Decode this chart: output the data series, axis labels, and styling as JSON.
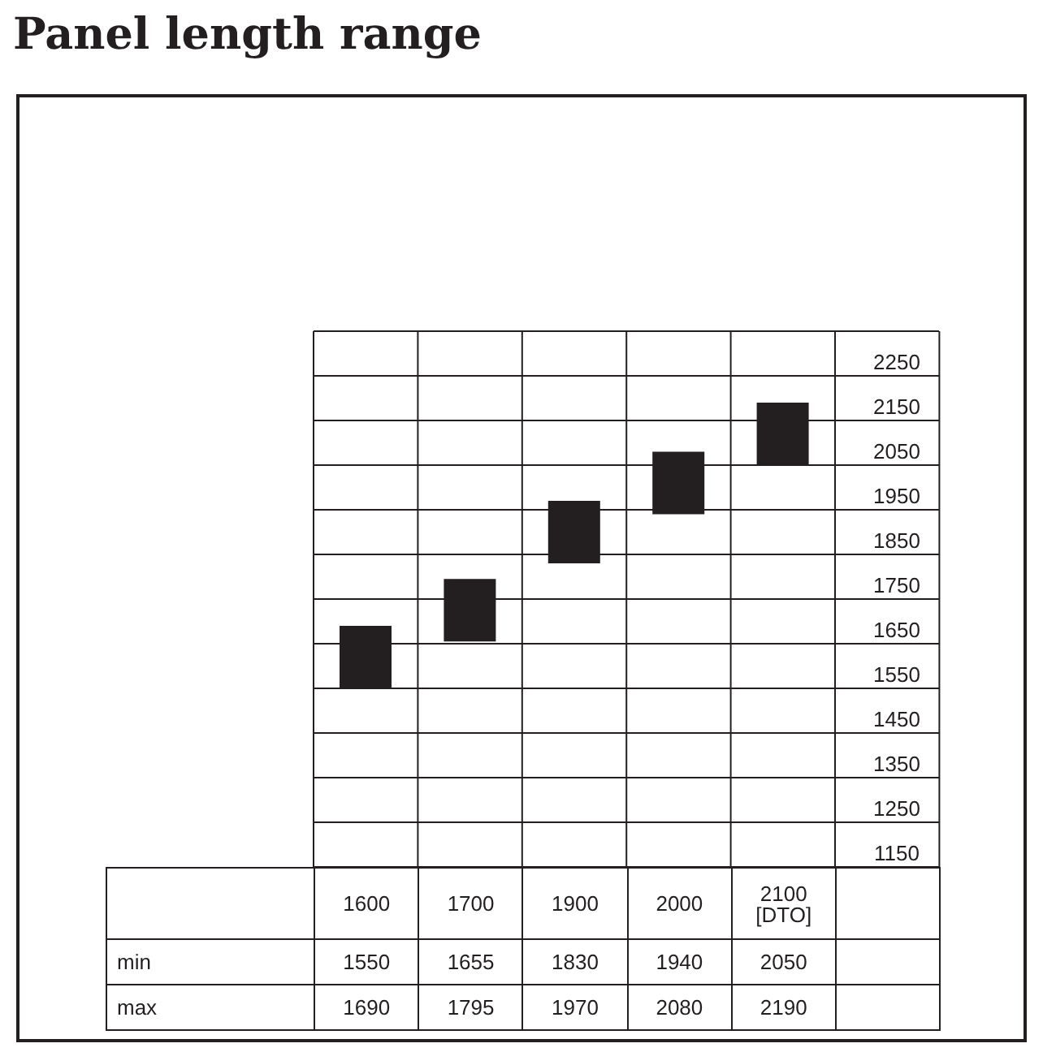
{
  "chart_data": {
    "type": "bar",
    "title": "Panel length range",
    "categories": [
      "1600",
      "1700",
      "1900",
      "2000",
      "2100 [DTO]"
    ],
    "base": [
      1550,
      1655,
      1830,
      1940,
      2050
    ],
    "values": [
      140,
      140,
      140,
      140,
      140
    ],
    "color": "#231f20",
    "ylim": [
      1150,
      2350
    ],
    "grid": true,
    "yticks": [
      1150,
      1250,
      1350,
      1450,
      1550,
      1650,
      1750,
      1850,
      1950,
      2050,
      2150,
      2250
    ],
    "annotations": [
      "min",
      "max",
      "1550",
      "1655",
      "1830",
      "1940",
      "2050",
      "1690",
      "1795",
      "1970",
      "2080",
      "2190"
    ]
  }
}
